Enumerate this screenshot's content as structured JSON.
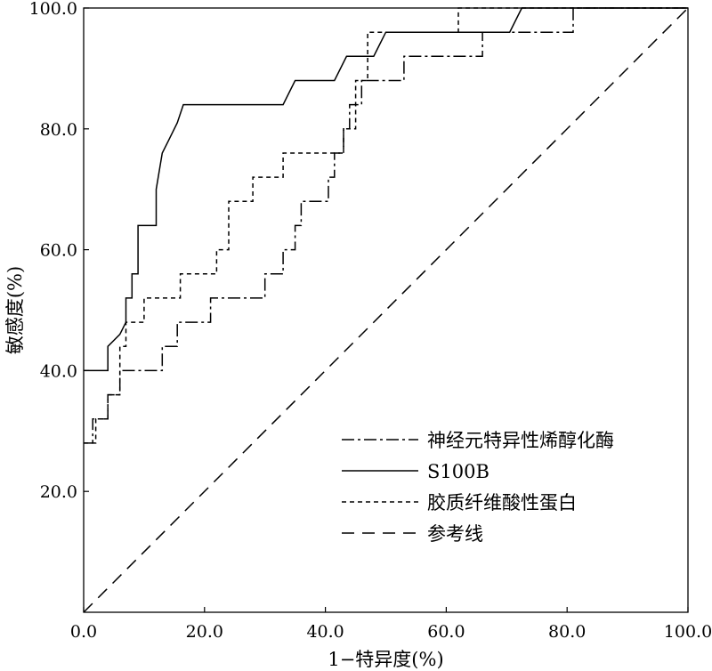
{
  "chart_data": {
    "type": "line",
    "xlabel": "1−特异度(%)",
    "ylabel": "敏感度(%)",
    "xlim": [
      0,
      100
    ],
    "ylim": [
      0,
      100
    ],
    "x_ticks": [
      "0.0",
      "20.0",
      "40.0",
      "60.0",
      "80.0",
      "100.0"
    ],
    "y_ticks": [
      "20.0",
      "40.0",
      "60.0",
      "80.0",
      "100.0"
    ],
    "grid": false,
    "legend_position": "bottom-right",
    "series": [
      {
        "name": "神经元特异性烯醇化酶",
        "style": "dashdot",
        "x": [
          0,
          1.5,
          1.5,
          4,
          4,
          6,
          6,
          7,
          7,
          8,
          8,
          12,
          12,
          13,
          13,
          14,
          14,
          15.5,
          15.5,
          20,
          20,
          21,
          21,
          30,
          30,
          31.5,
          31.5,
          33,
          33,
          35,
          35,
          36,
          36,
          40.5,
          40.5,
          41.5,
          41.5,
          43,
          43,
          44,
          44,
          45.5,
          45.5,
          46,
          46,
          48,
          48,
          53,
          53,
          54,
          54,
          66,
          66,
          70.5,
          70.5,
          71,
          71,
          81,
          81,
          100
        ],
        "y": [
          28,
          28,
          32,
          32,
          36,
          36,
          40,
          40,
          40,
          40,
          40,
          40,
          40,
          40,
          44,
          44,
          44,
          44,
          48,
          48,
          48,
          48,
          52,
          52,
          56,
          56,
          56,
          56,
          60,
          60,
          64,
          64,
          68,
          68,
          72,
          72,
          76,
          76,
          80,
          80,
          84,
          84,
          84,
          84,
          88,
          88,
          88,
          88,
          92,
          92,
          92,
          92,
          96,
          96,
          96,
          96,
          96,
          96,
          100,
          100
        ]
      },
      {
        "name": "S100B",
        "style": "solid",
        "x": [
          0,
          4,
          4,
          6,
          7,
          7,
          8,
          8,
          9,
          9,
          10,
          10,
          11,
          12,
          12,
          13,
          14,
          15.5,
          16.5,
          17,
          33,
          35,
          35.5,
          41.5,
          43.5,
          44,
          47.5,
          48,
          48.5,
          50,
          50,
          70.5,
          72.5,
          73,
          100
        ],
        "y": [
          40,
          40,
          44,
          46,
          48,
          52,
          52,
          56,
          56,
          64,
          64,
          64,
          64,
          64,
          70,
          76,
          78,
          81,
          84,
          84,
          84,
          88,
          88,
          88,
          92,
          92,
          92,
          92,
          93,
          96,
          96,
          96,
          100,
          100,
          100
        ]
      },
      {
        "name": "胶质纤维酸性蛋白",
        "style": "dashed",
        "x": [
          0,
          2,
          2,
          4,
          4,
          6,
          6,
          7,
          7,
          8,
          8,
          10,
          10,
          16,
          16,
          20,
          20,
          22,
          22,
          24,
          24,
          28,
          28,
          31,
          31,
          33,
          33,
          43,
          43,
          45,
          45,
          47,
          47,
          50,
          50,
          62,
          62,
          71,
          71,
          100
        ],
        "y": [
          28,
          28,
          32,
          32,
          36,
          36,
          44,
          44,
          48,
          48,
          48,
          48,
          52,
          52,
          56,
          56,
          56,
          56,
          60,
          60,
          68,
          68,
          72,
          72,
          72,
          72,
          76,
          76,
          80,
          80,
          88,
          88,
          96,
          96,
          96,
          96,
          100,
          100,
          100,
          100
        ]
      },
      {
        "name": "参考线",
        "style": "longdash",
        "x": [
          0,
          100
        ],
        "y": [
          0,
          100
        ]
      }
    ]
  }
}
